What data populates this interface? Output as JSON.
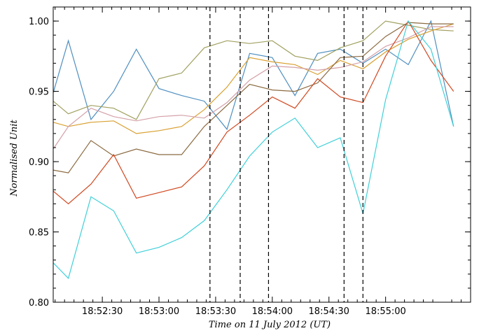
{
  "chart_data": {
    "type": "line",
    "title": "",
    "xlabel": "Time on 11 July 2012 (UT)",
    "ylabel": "Normalised Unit",
    "x": [
      "18:52:04",
      "18:52:12",
      "18:52:24",
      "18:52:36",
      "18:52:48",
      "18:53:00",
      "18:53:12",
      "18:53:24",
      "18:53:36",
      "18:53:48",
      "18:54:00",
      "18:54:12",
      "18:54:24",
      "18:54:36",
      "18:54:48",
      "18:55:00",
      "18:55:12",
      "18:55:24",
      "18:55:36"
    ],
    "xlim": [
      "18:52:04",
      "18:55:45"
    ],
    "ylim": [
      0.8,
      1.01
    ],
    "x_ticks": [
      "18:52:30",
      "18:53:00",
      "18:53:30",
      "18:54:00",
      "18:54:30",
      "18:55:00"
    ],
    "y_ticks": [
      "0.80",
      "0.85",
      "0.90",
      "0.95",
      "1.00"
    ],
    "vlines": [
      "18:53:27",
      "18:53:43",
      "18:53:58",
      "18:54:38",
      "18:54:48"
    ],
    "grid": false,
    "series": [
      {
        "color": "#4f8fc0",
        "values": [
          0.949,
          0.986,
          0.93,
          0.95,
          0.98,
          0.952,
          0.947,
          0.943,
          0.923,
          0.977,
          0.974,
          0.947,
          0.977,
          0.98,
          0.97,
          0.98,
          0.969,
          1.0,
          0.925
        ]
      },
      {
        "color": "#a0a060",
        "values": [
          0.943,
          0.934,
          0.94,
          0.938,
          0.93,
          0.959,
          0.963,
          0.981,
          0.986,
          0.984,
          0.986,
          0.975,
          0.972,
          0.981,
          0.986,
          1.0,
          0.997,
          0.994,
          0.993
        ]
      },
      {
        "color": "#d9a030",
        "values": [
          0.928,
          0.925,
          0.928,
          0.929,
          0.92,
          0.922,
          0.925,
          0.937,
          0.953,
          0.974,
          0.971,
          0.969,
          0.962,
          0.972,
          0.966,
          0.978,
          0.987,
          0.993,
          0.998
        ]
      },
      {
        "color": "#d4a0a8",
        "values": [
          0.909,
          0.925,
          0.938,
          0.932,
          0.929,
          0.932,
          0.933,
          0.931,
          0.942,
          0.958,
          0.968,
          0.967,
          0.965,
          0.967,
          0.971,
          0.982,
          0.988,
          0.996,
          0.996
        ]
      },
      {
        "color": "#8b6a40",
        "values": [
          0.894,
          0.892,
          0.915,
          0.904,
          0.909,
          0.905,
          0.905,
          0.925,
          0.94,
          0.955,
          0.951,
          0.95,
          0.956,
          0.974,
          0.975,
          0.989,
          0.999,
          0.998,
          0.998
        ]
      },
      {
        "color": "#d04820",
        "values": [
          0.879,
          0.87,
          0.884,
          0.905,
          0.874,
          0.878,
          0.882,
          0.897,
          0.921,
          0.933,
          0.946,
          0.938,
          0.959,
          0.946,
          0.942,
          0.975,
          1.0,
          0.972,
          0.95
        ]
      },
      {
        "color": "#40d0d8",
        "values": [
          0.828,
          0.817,
          0.875,
          0.865,
          0.835,
          0.839,
          0.846,
          0.858,
          0.88,
          0.904,
          0.921,
          0.931,
          0.91,
          0.917,
          0.863,
          0.944,
          1.0,
          0.98,
          0.925
        ]
      }
    ]
  }
}
